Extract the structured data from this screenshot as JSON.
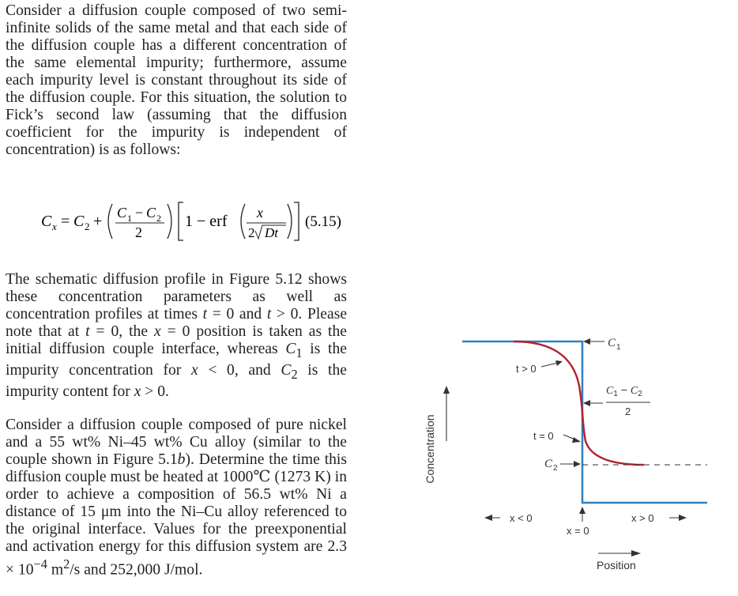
{
  "paragraph1": "Consider a diffusion couple composed of two semi-infinite solids of the same metal and that each side of the diffusion couple has a different concentration of the same elemental impurity; furthermore, assume each impurity level is constant throughout its side of the diffusion couple. For this situation, the solution to Fick’s second law (assuming that the diffusion coefficient for the impurity is independent of concentration) is as follows:",
  "equation": {
    "lhs": "C",
    "lhs_sub": "x",
    "c2": "C",
    "c2_sub": "2",
    "frac_num": "C",
    "frac_num_sub1": "1",
    "minus": "−",
    "frac_num_b": "C",
    "frac_num_sub2": "2",
    "frac_den": "2",
    "one_minus_erf": "1 − erf",
    "erf_num": "x",
    "erf_den_coef": "2",
    "erf_den_var": "Dt",
    "number": "(5.15)"
  },
  "paragraph2_parts": {
    "a": "The schematic diffusion profile in Figure 5.12 shows these concentration parameters as well as concentration profiles at times ",
    "t": "t",
    "b": " = 0 and ",
    "t2": "t",
    "c": " > 0. Please note that at ",
    "t3": "t",
    "d": " = 0, the ",
    "x1": "x",
    "e": " = 0 position is taken as the initial diffusion couple interface, whereas ",
    "c1": "C",
    "c1sub": "1",
    "f": " is the impurity concentration for ",
    "x2": "x",
    "g": " < 0, and ",
    "c2": "C",
    "c2sub": "2",
    "h": " is the impurity content for ",
    "x3": "x",
    "i": " > 0."
  },
  "paragraph3_parts": {
    "a": "Consider a diffusion couple composed of pure nickel and a 55 wt% Ni–45 wt% Cu alloy (similar to the couple shown in Figure 5.1",
    "b_it": "b",
    "c": "). Determine the time this diffusion couple must be heated at 1000℃ (1273 K) in order to achieve a composition of 56.5 wt% Ni a distance of 15 μm into the Ni–Cu alloy referenced to the original interface. Values for the preexponential and activation energy for this diffusion system are 2.3 × 10",
    "exp": "−4",
    "d": " m",
    "sq": "2",
    "e": "/s and 252,000 J/mol."
  },
  "figure": {
    "y_axis_label": "Concentration",
    "x_axis_label": "Position",
    "label_c1": "C",
    "label_c1_sub": "1",
    "label_c2": "C",
    "label_c2_sub": "2",
    "label_mid_num": "C",
    "label_mid_sub1": "1",
    "label_mid_minus": " − ",
    "label_mid_sub2": "2",
    "label_mid_den": "2",
    "label_t_pos": "t > 0",
    "label_t_zero": "t = 0",
    "label_x_neg": "x < 0",
    "label_x_pos": "x > 0",
    "label_x_zero": "x = 0",
    "colors": {
      "initial_profile": "#2f80c3",
      "diffused_profile": "#b3212b",
      "dashed": "#333333"
    }
  }
}
